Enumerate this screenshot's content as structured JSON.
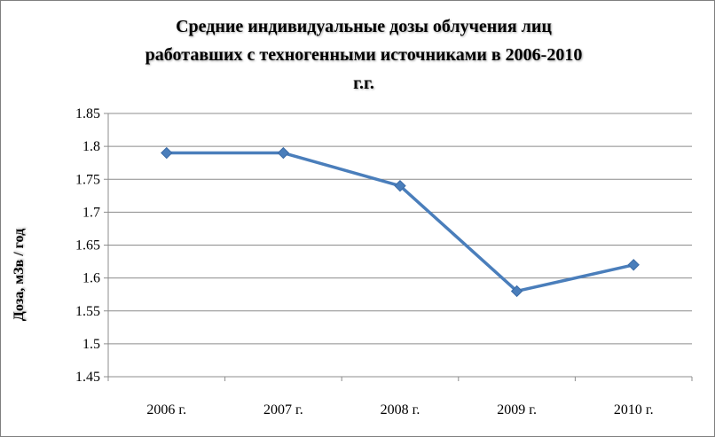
{
  "chart_data": {
    "type": "line",
    "title": "Средние индивидуальные дозы облучения лиц работавших с техногенными источниками в 2006-2010 г.г.",
    "title_lines": [
      "Средние индивидуальные дозы облучения лиц",
      "работавших с техногенными источниками в 2006-2010",
      "г.г."
    ],
    "xlabel": "",
    "ylabel": "Доза, мЗв / год",
    "categories": [
      "2006 г.",
      "2007 г.",
      "2008 г.",
      "2009 г.",
      "2010 г."
    ],
    "series": [
      {
        "values": [
          1.79,
          1.79,
          1.74,
          1.58,
          1.62
        ],
        "color": "#4a7ebb",
        "marker": "diamond"
      }
    ],
    "ylim": [
      1.45,
      1.85
    ],
    "yticks": [
      "1.85",
      "1.8",
      "1.75",
      "1.7",
      "1.65",
      "1.6",
      "1.55",
      "1.5",
      "1.45"
    ],
    "grid": true,
    "legend": "none"
  }
}
